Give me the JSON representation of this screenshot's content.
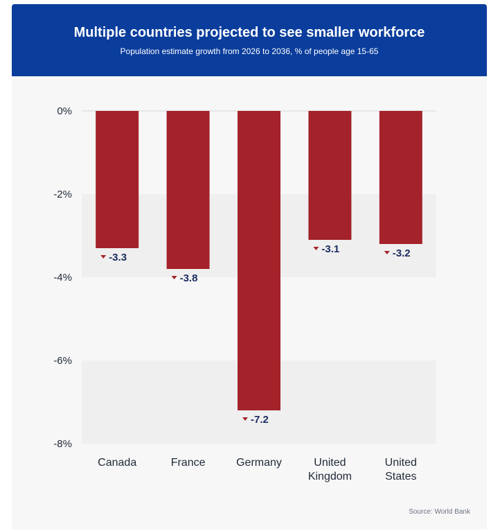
{
  "colors": {
    "header_bg": "#0a3d9c",
    "bar": "#a4232b",
    "band": "#efefef",
    "card_bg": "#f7f7f7",
    "value_text": "#1a2b5f"
  },
  "header": {
    "title": "Multiple countries projected to see smaller workforce",
    "subtitle": "Population estimate growth from 2026 to 2036, % of people age 15-65"
  },
  "footer": {
    "source": "Source: World Bank"
  },
  "chart_data": {
    "type": "bar",
    "title": "Multiple countries projected to see smaller workforce",
    "subtitle": "Population estimate growth from 2026 to 2036, % of people age 15-65",
    "categories": [
      "Canada",
      "France",
      "Germany",
      "United Kingdom",
      "United States"
    ],
    "category_lines": [
      [
        "Canada"
      ],
      [
        "France"
      ],
      [
        "Germany"
      ],
      [
        "United",
        "Kingdom"
      ],
      [
        "United",
        "States"
      ]
    ],
    "values": [
      -3.3,
      -3.8,
      -7.2,
      -3.1,
      -3.2
    ],
    "value_labels": [
      "-3.3",
      "-3.8",
      "-7.2",
      "-3.1",
      "-3.2"
    ],
    "yticks": [
      0,
      -2,
      -4,
      -6,
      -8
    ],
    "ytick_labels": [
      "0%",
      "-2%",
      "-4%",
      "-6%",
      "-8%"
    ],
    "ylim": [
      -8,
      0
    ],
    "grid": "alternating bands",
    "legend": "none"
  }
}
